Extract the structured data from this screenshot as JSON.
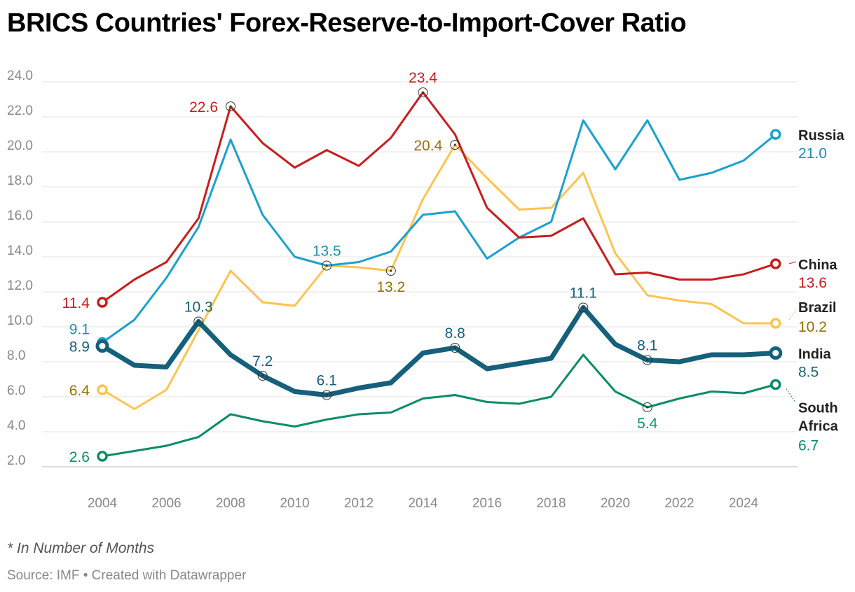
{
  "title": "BRICS Countries' Forex-Reserve-to-Import-Cover Ratio",
  "note": "* In Number of Months",
  "source": "Source: IMF • Created with Datawrapper",
  "chart_data": {
    "type": "line",
    "title": "BRICS Countries' Forex-Reserve-to-Import-Cover Ratio",
    "xlabel": "",
    "ylabel": "",
    "ylim": [
      2,
      24
    ],
    "yticks": [
      "2.0",
      "4.0",
      "6.0",
      "8.0",
      "10.0",
      "12.0",
      "14.0",
      "16.0",
      "18.0",
      "20.0",
      "22.0",
      "24.0"
    ],
    "xticks": [
      "2004",
      "2006",
      "2008",
      "2010",
      "2012",
      "2014",
      "2016",
      "2018",
      "2020",
      "2022",
      "2024"
    ],
    "grid": true,
    "x": [
      2004,
      2005,
      2006,
      2007,
      2008,
      2009,
      2010,
      2011,
      2012,
      2013,
      2014,
      2015,
      2016,
      2017,
      2018,
      2019,
      2020,
      2021,
      2022,
      2023,
      2024,
      2025
    ],
    "series": [
      {
        "name": "Brazil",
        "color": "#fdc44f",
        "label_color": "#9a6f00",
        "width": 3,
        "values": [
          6.4,
          5.3,
          6.4,
          9.8,
          13.2,
          11.4,
          11.2,
          13.5,
          13.4,
          13.2,
          17.3,
          20.4,
          18.5,
          16.7,
          16.8,
          18.8,
          14.2,
          11.8,
          11.5,
          11.3,
          10.2,
          10.2
        ],
        "end_name": "Brazil",
        "end_value": "10.2",
        "annotations": [
          {
            "year": 2004,
            "text": "6.4",
            "pos": "left"
          },
          {
            "year": 2013,
            "text": "13.2",
            "pos": "below"
          },
          {
            "year": 2015,
            "text": "20.4",
            "pos": "left"
          }
        ]
      },
      {
        "name": "Russia",
        "color": "#1aa1cf",
        "label_color": "#1a8db5",
        "width": 3,
        "values": [
          9.1,
          10.4,
          12.8,
          15.7,
          20.7,
          16.4,
          14.0,
          13.5,
          13.7,
          14.3,
          16.4,
          16.6,
          13.9,
          15.1,
          16.0,
          21.8,
          19.0,
          21.8,
          18.4,
          18.8,
          19.5,
          21.0
        ],
        "end_name": "Russia",
        "end_value": "21.0",
        "annotations": [
          {
            "year": 2004,
            "text": "9.1",
            "pos": "upleft"
          },
          {
            "year": 2011,
            "text": "13.5",
            "pos": "above"
          }
        ]
      },
      {
        "name": "China",
        "color": "#c71e1d",
        "label_color": "#c71e1d",
        "width": 3,
        "values": [
          11.4,
          12.7,
          13.7,
          16.2,
          22.6,
          20.5,
          19.1,
          20.1,
          19.2,
          20.8,
          23.4,
          21.0,
          16.8,
          15.1,
          15.2,
          16.2,
          13.0,
          13.1,
          12.7,
          12.7,
          13.0,
          13.6
        ],
        "end_name": "China",
        "end_value": "13.6",
        "annotations": [
          {
            "year": 2004,
            "text": "11.4",
            "pos": "left"
          },
          {
            "year": 2008,
            "text": "22.6",
            "pos": "left"
          },
          {
            "year": 2014,
            "text": "23.4",
            "pos": "above"
          }
        ]
      },
      {
        "name": "South Africa",
        "color": "#0b8c6b",
        "label_color": "#0b8c6b",
        "width": 3,
        "values": [
          2.6,
          2.9,
          3.2,
          3.7,
          5.0,
          4.6,
          4.3,
          4.7,
          5.0,
          5.1,
          5.9,
          6.1,
          5.7,
          5.6,
          6.0,
          8.4,
          6.3,
          5.4,
          5.9,
          6.3,
          6.2,
          6.7
        ],
        "end_name": "South Africa",
        "end_value": "6.7",
        "annotations": [
          {
            "year": 2004,
            "text": "2.6",
            "pos": "left"
          },
          {
            "year": 2021,
            "text": "5.4",
            "pos": "below"
          }
        ]
      },
      {
        "name": "India",
        "color": "#15607a",
        "label_color": "#15607a",
        "width": 7,
        "values": [
          8.9,
          7.8,
          7.7,
          10.3,
          8.4,
          7.2,
          6.3,
          6.1,
          6.5,
          6.8,
          8.5,
          8.8,
          7.6,
          7.9,
          8.2,
          11.1,
          9.0,
          8.1,
          8.0,
          8.4,
          8.4,
          8.5
        ],
        "end_name": "India",
        "end_value": "8.5",
        "annotations": [
          {
            "year": 2004,
            "text": "8.9",
            "pos": "left"
          },
          {
            "year": 2007,
            "text": "10.3",
            "pos": "above"
          },
          {
            "year": 2009,
            "text": "7.2",
            "pos": "above"
          },
          {
            "year": 2011,
            "text": "6.1",
            "pos": "above"
          },
          {
            "year": 2015,
            "text": "8.8",
            "pos": "above"
          },
          {
            "year": 2019,
            "text": "11.1",
            "pos": "above"
          },
          {
            "year": 2021,
            "text": "8.1",
            "pos": "above"
          }
        ]
      }
    ]
  }
}
